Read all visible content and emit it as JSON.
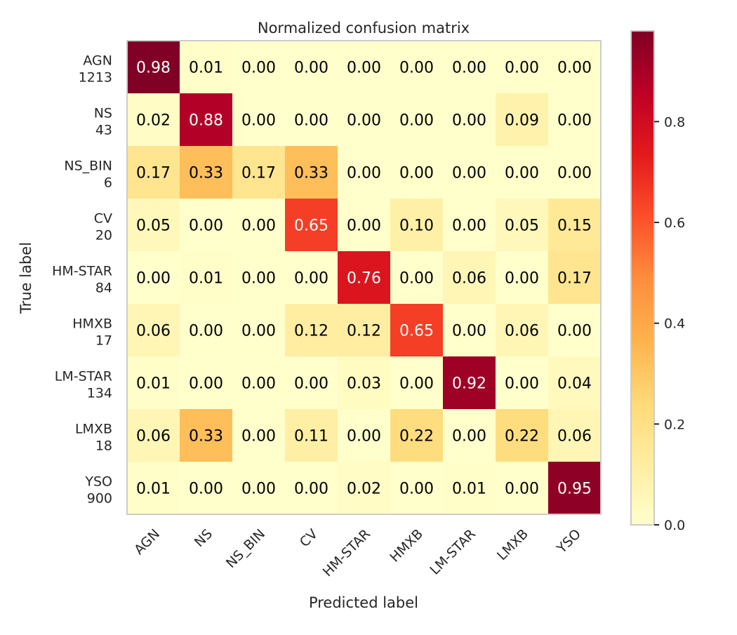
{
  "chart_data": {
    "type": "heatmap",
    "title": "Normalized confusion matrix",
    "xlabel": "Predicted label",
    "ylabel": "True label",
    "x_categories": [
      "AGN",
      "NS",
      "NS_BIN",
      "CV",
      "HM-STAR",
      "HMXB",
      "LM-STAR",
      "LMXB",
      "YSO"
    ],
    "y_categories": [
      {
        "label": "AGN",
        "count": "1213"
      },
      {
        "label": "NS",
        "count": "43"
      },
      {
        "label": "NS_BIN",
        "count": "6"
      },
      {
        "label": "CV",
        "count": "20"
      },
      {
        "label": "HM-STAR",
        "count": "84"
      },
      {
        "label": "HMXB",
        "count": "17"
      },
      {
        "label": "LM-STAR",
        "count": "134"
      },
      {
        "label": "LMXB",
        "count": "18"
      },
      {
        "label": "YSO",
        "count": "900"
      }
    ],
    "values": [
      [
        0.98,
        0.01,
        0.0,
        0.0,
        0.0,
        0.0,
        0.0,
        0.0,
        0.0
      ],
      [
        0.02,
        0.88,
        0.0,
        0.0,
        0.0,
        0.0,
        0.0,
        0.09,
        0.0
      ],
      [
        0.17,
        0.33,
        0.17,
        0.33,
        0.0,
        0.0,
        0.0,
        0.0,
        0.0
      ],
      [
        0.05,
        0.0,
        0.0,
        0.65,
        0.0,
        0.1,
        0.0,
        0.05,
        0.15
      ],
      [
        0.0,
        0.01,
        0.0,
        0.0,
        0.76,
        0.0,
        0.06,
        0.0,
        0.17
      ],
      [
        0.06,
        0.0,
        0.0,
        0.12,
        0.12,
        0.65,
        0.0,
        0.06,
        0.0
      ],
      [
        0.01,
        0.0,
        0.0,
        0.0,
        0.03,
        0.0,
        0.92,
        0.0,
        0.04
      ],
      [
        0.06,
        0.33,
        0.0,
        0.11,
        0.0,
        0.22,
        0.0,
        0.22,
        0.06
      ],
      [
        0.01,
        0.0,
        0.0,
        0.0,
        0.02,
        0.0,
        0.01,
        0.0,
        0.95
      ]
    ],
    "colormap": "YlOrRd",
    "colorbar": {
      "range": [
        0.0,
        0.98
      ],
      "ticks": [
        0.0,
        0.2,
        0.4,
        0.6,
        0.8
      ],
      "tick_labels": [
        "0.0",
        "0.2",
        "0.4",
        "0.6",
        "0.8"
      ]
    },
    "grid": false,
    "value_format": "two-decimals"
  }
}
